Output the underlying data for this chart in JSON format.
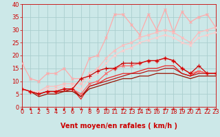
{
  "xlabel": "Vent moyen/en rafales ( km/h )",
  "xlim": [
    0,
    23
  ],
  "ylim": [
    0,
    40
  ],
  "xticks": [
    0,
    1,
    2,
    3,
    4,
    5,
    6,
    7,
    8,
    9,
    10,
    11,
    12,
    13,
    14,
    15,
    16,
    17,
    18,
    19,
    20,
    21,
    22,
    23
  ],
  "yticks": [
    0,
    5,
    10,
    15,
    20,
    25,
    30,
    35,
    40
  ],
  "bg_color": "#cce8e8",
  "grid_color": "#aacece",
  "series": [
    {
      "x": [
        0,
        1,
        2,
        3,
        4,
        5,
        6,
        7,
        8,
        9,
        10,
        11,
        12,
        13,
        14,
        15,
        16,
        17,
        18,
        19,
        20,
        21,
        22,
        23
      ],
      "y": [
        17,
        11,
        10,
        13,
        13,
        15,
        11,
        11,
        19,
        20,
        27,
        36,
        36,
        32,
        28,
        36,
        30,
        38,
        29,
        37,
        33,
        35,
        36,
        31
      ],
      "color": "#ffaaaa",
      "lw": 0.9,
      "marker": "x",
      "ms": 3.0
    },
    {
      "x": [
        0,
        1,
        2,
        3,
        4,
        5,
        6,
        7,
        8,
        9,
        10,
        11,
        12,
        13,
        14,
        15,
        16,
        17,
        18,
        19,
        20,
        21,
        22,
        23
      ],
      "y": [
        7,
        6,
        6,
        8,
        8,
        9,
        9,
        9,
        13,
        15,
        19,
        22,
        24,
        25,
        27,
        28,
        29,
        30,
        29,
        27,
        25,
        29,
        30,
        31
      ],
      "color": "#ffbbbb",
      "lw": 0.9,
      "marker": "x",
      "ms": 3.0
    },
    {
      "x": [
        0,
        1,
        2,
        3,
        4,
        5,
        6,
        7,
        8,
        9,
        10,
        11,
        12,
        13,
        14,
        15,
        16,
        17,
        18,
        19,
        20,
        21,
        22,
        23
      ],
      "y": [
        7,
        6,
        6,
        7,
        7,
        8,
        8,
        7,
        11,
        13,
        17,
        20,
        22,
        23,
        25,
        26,
        27,
        28,
        27,
        25,
        24,
        27,
        28,
        29
      ],
      "color": "#ffcccc",
      "lw": 0.9,
      "marker": "x",
      "ms": 3.0
    },
    {
      "x": [
        0,
        1,
        2,
        3,
        4,
        5,
        6,
        7,
        8,
        9,
        10,
        11,
        12,
        13,
        14,
        15,
        16,
        17,
        18,
        19,
        20,
        21,
        22,
        23
      ],
      "y": [
        7,
        6,
        5,
        6,
        6,
        7,
        7,
        5,
        9,
        10,
        13,
        15,
        16,
        16,
        17,
        18,
        18,
        19,
        18,
        15,
        13,
        14,
        13,
        13
      ],
      "color": "#ff6666",
      "lw": 0.9,
      "marker": "x",
      "ms": 3.0
    },
    {
      "x": [
        0,
        1,
        2,
        3,
        4,
        5,
        6,
        7,
        8,
        9,
        10,
        11,
        12,
        13,
        14,
        15,
        16,
        17,
        18,
        19,
        20,
        21,
        22,
        23
      ],
      "y": [
        7,
        6,
        5,
        6,
        6,
        7,
        7,
        11,
        12,
        14,
        15,
        15,
        17,
        17,
        17,
        18,
        18,
        19,
        18,
        15,
        13,
        16,
        13,
        13
      ],
      "color": "#cc0000",
      "lw": 0.9,
      "marker": "+",
      "ms": 4.0
    },
    {
      "x": [
        0,
        1,
        2,
        3,
        4,
        5,
        6,
        7,
        8,
        9,
        10,
        11,
        12,
        13,
        14,
        15,
        16,
        17,
        18,
        19,
        20,
        21,
        22,
        23
      ],
      "y": [
        7,
        6,
        5,
        6,
        6,
        6,
        7,
        3,
        8,
        9,
        11,
        12,
        13,
        13,
        14,
        15,
        15,
        16,
        16,
        13,
        12,
        14,
        13,
        13
      ],
      "color": "#ee2222",
      "lw": 0.9,
      "marker": null,
      "ms": 0
    },
    {
      "x": [
        0,
        1,
        2,
        3,
        4,
        5,
        6,
        7,
        8,
        9,
        10,
        11,
        12,
        13,
        14,
        15,
        16,
        17,
        18,
        19,
        20,
        21,
        22,
        23
      ],
      "y": [
        7,
        6,
        5,
        6,
        6,
        6,
        7,
        4,
        8,
        9,
        10,
        11,
        12,
        13,
        13,
        14,
        14,
        15,
        15,
        13,
        12,
        13,
        13,
        13
      ],
      "color": "#bb1111",
      "lw": 0.9,
      "marker": null,
      "ms": 0
    },
    {
      "x": [
        0,
        1,
        2,
        3,
        4,
        5,
        6,
        7,
        8,
        9,
        10,
        11,
        12,
        13,
        14,
        15,
        16,
        17,
        18,
        19,
        20,
        21,
        22,
        23
      ],
      "y": [
        7,
        6,
        4,
        5,
        5,
        6,
        6,
        4,
        7,
        8,
        9,
        10,
        11,
        11,
        12,
        12,
        13,
        13,
        13,
        12,
        11,
        12,
        12,
        12
      ],
      "color": "#991100",
      "lw": 0.9,
      "marker": null,
      "ms": 0
    }
  ],
  "arrow_color": "#cc0000",
  "xlabel_color": "#cc0000",
  "xlabel_fontsize": 7,
  "tick_fontsize": 6,
  "tick_color": "#cc0000"
}
